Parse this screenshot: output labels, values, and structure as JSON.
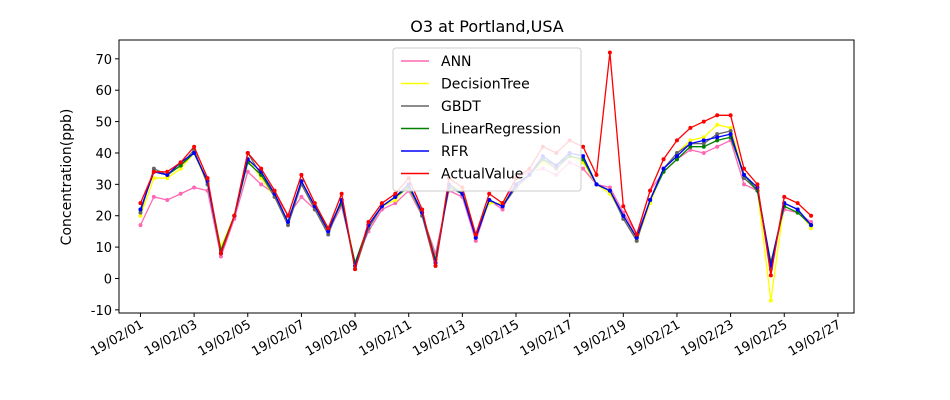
{
  "chart_data": {
    "type": "line",
    "title": "O3 at Portland,USA",
    "xlabel": "",
    "ylabel": "Concentration(ppb)",
    "x_range_days": [
      0,
      25
    ],
    "xlim": [
      "19/02/01",
      "19/02/27"
    ],
    "ylim": [
      -11,
      76
    ],
    "y_ticks": [
      -10,
      0,
      10,
      20,
      30,
      40,
      50,
      60,
      70
    ],
    "x_ticks": [
      {
        "label": "19/02/01",
        "day": 1
      },
      {
        "label": "19/02/03",
        "day": 3
      },
      {
        "label": "19/02/05",
        "day": 5
      },
      {
        "label": "19/02/07",
        "day": 7
      },
      {
        "label": "19/02/09",
        "day": 9
      },
      {
        "label": "19/02/11",
        "day": 11
      },
      {
        "label": "19/02/13",
        "day": 13
      },
      {
        "label": "19/02/15",
        "day": 15
      },
      {
        "label": "19/02/17",
        "day": 17
      },
      {
        "label": "19/02/19",
        "day": 19
      },
      {
        "label": "19/02/21",
        "day": 21
      },
      {
        "label": "19/02/23",
        "day": 23
      },
      {
        "label": "19/02/25",
        "day": 25
      },
      {
        "label": "19/02/27",
        "day": 27
      }
    ],
    "legend_position": "top-center",
    "grid": false,
    "x": [
      1.0,
      1.5,
      2.0,
      2.5,
      3.0,
      3.5,
      4.0,
      4.5,
      5.0,
      5.5,
      6.0,
      6.5,
      7.0,
      7.5,
      8.0,
      8.5,
      9.0,
      9.5,
      10.0,
      10.5,
      11.0,
      11.5,
      12.0,
      12.5,
      13.0,
      13.5,
      14.0,
      14.5,
      15.0,
      15.5,
      16.0,
      16.5,
      17.0,
      17.5,
      18.0,
      18.5,
      19.0,
      19.5,
      20.0,
      20.5,
      21.0,
      21.5,
      22.0,
      22.5,
      23.0,
      23.5,
      24.0,
      24.5,
      25.0,
      25.5,
      26.0
    ],
    "series": [
      {
        "name": "ANN",
        "color": "#ff69b4",
        "values": [
          17,
          26,
          25,
          27,
          29,
          28,
          7,
          19,
          34,
          30,
          27,
          20,
          26,
          22,
          15,
          23,
          5,
          15,
          22,
          24,
          28,
          20,
          8,
          28,
          26,
          12,
          25,
          22,
          32,
          34,
          35,
          33,
          37,
          35,
          30,
          29,
          21,
          14,
          28,
          34,
          38,
          41,
          40,
          42,
          44,
          30,
          28,
          5,
          22,
          21,
          18
        ]
      },
      {
        "name": "DecisionTree",
        "color": "#ffff00",
        "values": [
          20,
          32,
          32,
          35,
          40,
          30,
          10,
          20,
          38,
          32,
          26,
          18,
          30,
          22,
          15,
          25,
          5,
          17,
          23,
          25,
          30,
          20,
          5,
          30,
          28,
          14,
          24,
          24,
          29,
          33,
          37,
          35,
          39,
          37,
          30,
          27,
          20,
          12,
          24,
          35,
          40,
          44,
          45,
          49,
          48,
          33,
          28,
          -7,
          24,
          22,
          16
        ]
      },
      {
        "name": "GBDT",
        "color": "#666666",
        "values": [
          21,
          35,
          33,
          36,
          41,
          30,
          8,
          20,
          40,
          33,
          26,
          17,
          30,
          22,
          14,
          25,
          3,
          16,
          23,
          26,
          30,
          20,
          4,
          30,
          27,
          13,
          25,
          23,
          29,
          33,
          38,
          35,
          39,
          38,
          30,
          28,
          19,
          12,
          25,
          35,
          40,
          43,
          43,
          46,
          47,
          32,
          28,
          3,
          24,
          22,
          17
        ]
      },
      {
        "name": "LinearRegression",
        "color": "#008000",
        "values": [
          22,
          34,
          33,
          36,
          40,
          31,
          9,
          20,
          37,
          33,
          27,
          18,
          31,
          23,
          16,
          24,
          5,
          17,
          23,
          26,
          29,
          21,
          6,
          29,
          27,
          14,
          25,
          23,
          30,
          33,
          38,
          36,
          39,
          38,
          30,
          28,
          20,
          13,
          25,
          34,
          38,
          42,
          42,
          44,
          45,
          33,
          28,
          5,
          23,
          21,
          17
        ]
      },
      {
        "name": "RFR",
        "color": "#0000ff",
        "values": [
          22,
          34,
          33,
          37,
          40,
          31,
          8,
          20,
          38,
          34,
          27,
          18,
          31,
          23,
          15,
          25,
          4,
          17,
          23,
          26,
          30,
          21,
          5,
          30,
          27,
          13,
          25,
          23,
          30,
          33,
          39,
          36,
          40,
          39,
          30,
          28,
          20,
          13,
          25,
          35,
          39,
          43,
          44,
          45,
          46,
          33,
          29,
          4,
          24,
          22,
          17
        ]
      },
      {
        "name": "ActualValue",
        "color": "#ff0000",
        "values": [
          24,
          34,
          34,
          37,
          42,
          32,
          8,
          20,
          40,
          35,
          28,
          20,
          33,
          24,
          16,
          27,
          3,
          18,
          24,
          27,
          32,
          22,
          4,
          32,
          29,
          14,
          27,
          24,
          32,
          35,
          42,
          40,
          44,
          42,
          33,
          72,
          23,
          14,
          28,
          38,
          44,
          48,
          50,
          52,
          52,
          35,
          30,
          1,
          26,
          24,
          20
        ]
      }
    ]
  }
}
